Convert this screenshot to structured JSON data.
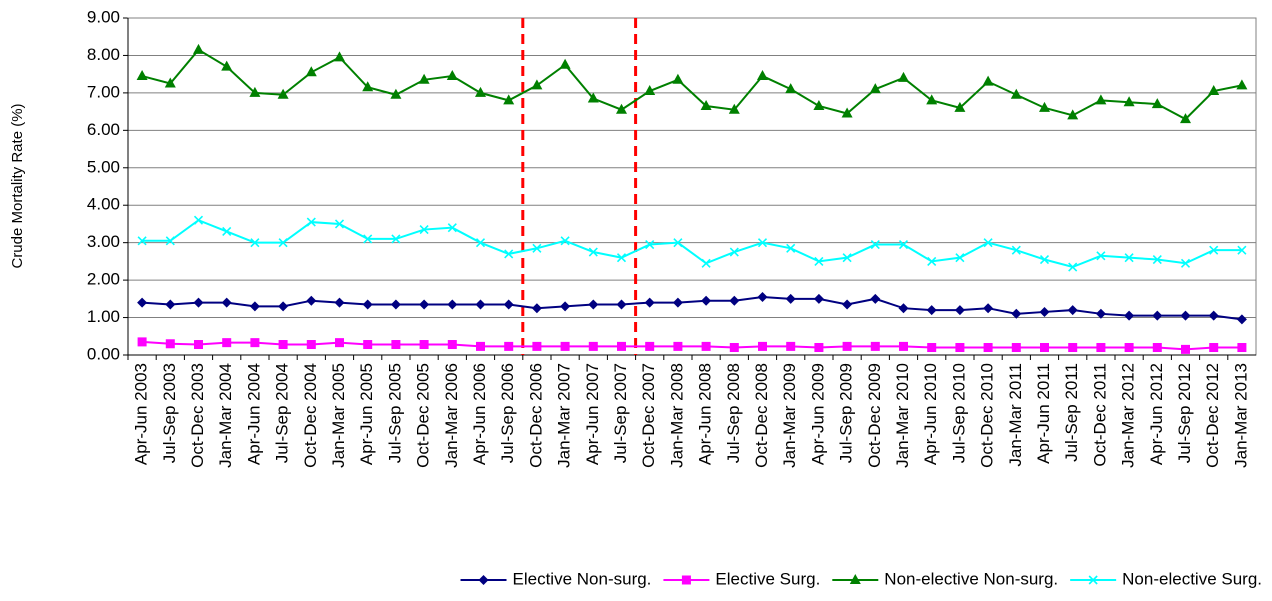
{
  "chart_data": {
    "type": "line",
    "y_label": "Crude Mortality Rate (%)",
    "categories": [
      "Apr-Jun 2003",
      "Jul-Sep 2003",
      "Oct-Dec 2003",
      "Jan-Mar 2004",
      "Apr-Jun 2004",
      "Jul-Sep 2004",
      "Oct-Dec 2004",
      "Jan-Mar 2005",
      "Apr-Jun 2005",
      "Jul-Sep 2005",
      "Oct-Dec 2005",
      "Jan-Mar 2006",
      "Apr-Jun 2006",
      "Jul-Sep 2006",
      "Oct-Dec 2006",
      "Jan-Mar 2007",
      "Apr-Jun 2007",
      "Jul-Sep 2007",
      "Oct-Dec 2007",
      "Jan-Mar 2008",
      "Apr-Jun 2008",
      "Jul-Sep 2008",
      "Oct-Dec 2008",
      "Jan-Mar 2009",
      "Apr-Jun 2009",
      "Jul-Sep 2009",
      "Oct-Dec 2009",
      "Jan-Mar 2010",
      "Apr-Jun 2010",
      "Jul-Sep 2010",
      "Oct-Dec 2010",
      "Jan-Mar 2011",
      "Apr-Jun 2011",
      "Jul-Sep 2011",
      "Oct-Dec 2011",
      "Jan-Mar 2012",
      "Apr-Jun 2012",
      "Jul-Sep 2012",
      "Oct-Dec 2012",
      "Jan-Mar 2013"
    ],
    "series": [
      {
        "name": "Elective Non-surg.",
        "color": "#000080",
        "marker": "diamond",
        "values": [
          1.4,
          1.35,
          1.4,
          1.4,
          1.3,
          1.3,
          1.45,
          1.4,
          1.35,
          1.35,
          1.35,
          1.35,
          1.35,
          1.35,
          1.25,
          1.3,
          1.35,
          1.35,
          1.4,
          1.4,
          1.45,
          1.45,
          1.55,
          1.5,
          1.5,
          1.35,
          1.5,
          1.25,
          1.2,
          1.2,
          1.25,
          1.1,
          1.15,
          1.2,
          1.1,
          1.05,
          1.05,
          1.05,
          1.05,
          0.95
        ]
      },
      {
        "name": "Elective Surg.",
        "color": "#ff00ff",
        "marker": "square",
        "values": [
          0.35,
          0.3,
          0.28,
          0.33,
          0.33,
          0.28,
          0.28,
          0.33,
          0.28,
          0.28,
          0.28,
          0.28,
          0.23,
          0.23,
          0.23,
          0.23,
          0.23,
          0.23,
          0.23,
          0.23,
          0.23,
          0.2,
          0.23,
          0.23,
          0.2,
          0.23,
          0.23,
          0.23,
          0.2,
          0.2,
          0.2,
          0.2,
          0.2,
          0.2,
          0.2,
          0.2,
          0.2,
          0.15,
          0.2,
          0.2
        ]
      },
      {
        "name": "Non-elective Non-surg.",
        "color": "#008000",
        "marker": "triangle",
        "values": [
          7.45,
          7.25,
          8.15,
          7.7,
          7.0,
          6.95,
          7.55,
          7.95,
          7.15,
          6.95,
          7.35,
          7.45,
          7.0,
          6.8,
          7.2,
          7.75,
          6.85,
          6.55,
          7.05,
          7.35,
          6.65,
          6.55,
          7.45,
          7.1,
          6.65,
          6.45,
          7.1,
          7.4,
          6.8,
          6.6,
          7.3,
          6.95,
          6.6,
          6.4,
          6.8,
          6.75,
          6.7,
          6.3,
          7.05,
          7.2
        ]
      },
      {
        "name": "Non-elective Surg.",
        "color": "#00ffff",
        "marker": "x",
        "values": [
          3.05,
          3.05,
          3.6,
          3.3,
          3.0,
          3.0,
          3.55,
          3.5,
          3.1,
          3.1,
          3.35,
          3.4,
          3.0,
          2.7,
          2.85,
          3.05,
          2.75,
          2.6,
          2.95,
          3.0,
          2.45,
          2.75,
          3.0,
          2.85,
          2.5,
          2.6,
          2.95,
          2.95,
          2.5,
          2.6,
          3.0,
          2.8,
          2.55,
          2.35,
          2.65,
          2.6,
          2.55,
          2.45,
          2.8,
          2.8
        ]
      }
    ],
    "ylim": [
      0,
      9
    ],
    "yticks": [
      {
        "value": 0,
        "label": "0.00"
      },
      {
        "value": 1,
        "label": "1.00"
      },
      {
        "value": 2,
        "label": "2.00"
      },
      {
        "value": 3,
        "label": "3.00"
      },
      {
        "value": 4,
        "label": "4.00"
      },
      {
        "value": 5,
        "label": "5.00"
      },
      {
        "value": 6,
        "label": "6.00"
      },
      {
        "value": 7,
        "label": "7.00"
      },
      {
        "value": 8,
        "label": "8.00"
      },
      {
        "value": 9,
        "label": "9.00"
      }
    ],
    "grid": true,
    "legend": "bottom",
    "reference_lines": [
      {
        "between": [
          "Jul-Sep 2006",
          "Oct-Dec 2006"
        ],
        "color": "#ff0000",
        "style": "dashed"
      },
      {
        "between": [
          "Jul-Sep 2007",
          "Oct-Dec 2007"
        ],
        "color": "#ff0000",
        "style": "dashed"
      }
    ]
  }
}
